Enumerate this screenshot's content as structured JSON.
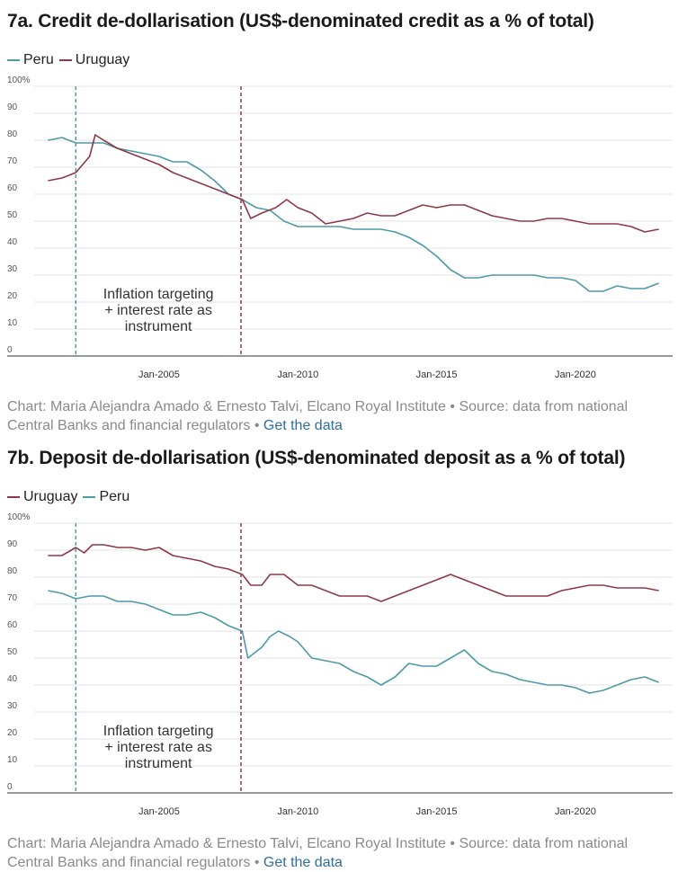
{
  "charts": [
    {
      "id": "a",
      "title": "7a. Credit de-dollarisation (US$-denominated credit as a % of total)",
      "legend": [
        {
          "name": "Peru",
          "color": "#4e9aa8"
        },
        {
          "name": "Uruguay",
          "color": "#8e3a46"
        }
      ],
      "source_text": "Chart: Maria Alejandra Amado & Ernesto Talvi, Elcano Royal Institute • Source: data from national Central Banks and financial regulators • ",
      "link_label": "Get the data",
      "annotation": [
        "Inflation targeting",
        "+ interest rate as",
        "instrument"
      ]
    },
    {
      "id": "b",
      "title": "7b. Deposit de-dollarisation (US$-denominated deposit as a % of total)",
      "legend": [
        {
          "name": "Uruguay",
          "color": "#8e3a46"
        },
        {
          "name": "Peru",
          "color": "#4e9aa8"
        }
      ],
      "source_text": "Chart: Maria Alejandra Amado & Ernesto Talvi, Elcano Royal Institute • Source: data from national Central Banks and financial regulators • ",
      "link_label": "Get the data",
      "annotation": [
        "Inflation targeting",
        "+ interest rate as",
        "instrument"
      ]
    }
  ],
  "chart_data": [
    {
      "type": "line",
      "title": "7a. Credit de-dollarisation (US$-denominated credit as a % of total)",
      "xlabel": "",
      "ylabel": "",
      "xlim": [
        2000.5,
        2023.5
      ],
      "ylim": [
        0,
        100
      ],
      "y_ticks": [
        0,
        10,
        20,
        30,
        40,
        50,
        60,
        70,
        80,
        90
      ],
      "y_top_label": "100%",
      "x_ticks": [
        {
          "label": "Jan-2005",
          "x": 2005
        },
        {
          "label": "Jan-2010",
          "x": 2010
        },
        {
          "label": "Jan-2015",
          "x": 2015
        },
        {
          "label": "Jan-2020",
          "x": 2020
        }
      ],
      "grid": true,
      "legend_position": "top-left",
      "vlines": [
        {
          "x": 2002.0,
          "color": "#4e9aa8"
        },
        {
          "x": 2007.95,
          "color": "#8e3a46"
        }
      ],
      "series": [
        {
          "name": "Peru",
          "color": "#4e9aa8",
          "points": [
            [
              2001.0,
              80
            ],
            [
              2001.5,
              81
            ],
            [
              2002.0,
              79
            ],
            [
              2002.5,
              79
            ],
            [
              2003.0,
              79
            ],
            [
              2003.5,
              77
            ],
            [
              2004.0,
              76
            ],
            [
              2004.5,
              75
            ],
            [
              2005.0,
              74
            ],
            [
              2005.5,
              72
            ],
            [
              2006.0,
              72
            ],
            [
              2006.5,
              69
            ],
            [
              2007.0,
              65
            ],
            [
              2007.5,
              60
            ],
            [
              2008.0,
              58
            ],
            [
              2008.5,
              55
            ],
            [
              2009.0,
              54
            ],
            [
              2009.5,
              50
            ],
            [
              2010.0,
              48
            ],
            [
              2010.5,
              48
            ],
            [
              2011.0,
              48
            ],
            [
              2011.5,
              48
            ],
            [
              2012.0,
              47
            ],
            [
              2012.5,
              47
            ],
            [
              2013.0,
              47
            ],
            [
              2013.5,
              46
            ],
            [
              2014.0,
              44
            ],
            [
              2014.5,
              41
            ],
            [
              2015.0,
              37
            ],
            [
              2015.5,
              32
            ],
            [
              2016.0,
              29
            ],
            [
              2016.5,
              29
            ],
            [
              2017.0,
              30
            ],
            [
              2017.5,
              30
            ],
            [
              2018.0,
              30
            ],
            [
              2018.5,
              30
            ],
            [
              2019.0,
              29
            ],
            [
              2019.5,
              29
            ],
            [
              2020.0,
              28
            ],
            [
              2020.5,
              24
            ],
            [
              2021.0,
              24
            ],
            [
              2021.5,
              26
            ],
            [
              2022.0,
              25
            ],
            [
              2022.5,
              25
            ],
            [
              2023.0,
              27
            ]
          ]
        },
        {
          "name": "Uruguay",
          "color": "#8e3a46",
          "points": [
            [
              2001.0,
              65
            ],
            [
              2001.5,
              66
            ],
            [
              2002.0,
              68
            ],
            [
              2002.5,
              74
            ],
            [
              2002.7,
              82
            ],
            [
              2003.0,
              80
            ],
            [
              2003.5,
              77
            ],
            [
              2004.0,
              75
            ],
            [
              2004.5,
              73
            ],
            [
              2005.0,
              71
            ],
            [
              2005.5,
              68
            ],
            [
              2006.0,
              66
            ],
            [
              2006.5,
              64
            ],
            [
              2007.0,
              62
            ],
            [
              2007.5,
              60
            ],
            [
              2008.0,
              58
            ],
            [
              2008.3,
              51
            ],
            [
              2008.7,
              53
            ],
            [
              2009.2,
              55
            ],
            [
              2009.6,
              58
            ],
            [
              2010.0,
              55
            ],
            [
              2010.5,
              53
            ],
            [
              2011.0,
              49
            ],
            [
              2011.5,
              50
            ],
            [
              2012.0,
              51
            ],
            [
              2012.5,
              53
            ],
            [
              2013.0,
              52
            ],
            [
              2013.5,
              52
            ],
            [
              2014.0,
              54
            ],
            [
              2014.5,
              56
            ],
            [
              2015.0,
              55
            ],
            [
              2015.5,
              56
            ],
            [
              2016.0,
              56
            ],
            [
              2016.5,
              54
            ],
            [
              2017.0,
              52
            ],
            [
              2017.5,
              51
            ],
            [
              2018.0,
              50
            ],
            [
              2018.5,
              50
            ],
            [
              2019.0,
              51
            ],
            [
              2019.5,
              51
            ],
            [
              2020.0,
              50
            ],
            [
              2020.5,
              49
            ],
            [
              2021.0,
              49
            ],
            [
              2021.5,
              49
            ],
            [
              2022.0,
              48
            ],
            [
              2022.5,
              46
            ],
            [
              2023.0,
              47
            ]
          ]
        }
      ]
    },
    {
      "type": "line",
      "title": "7b. Deposit de-dollarisation (US$-denominated deposit as a % of total)",
      "xlabel": "",
      "ylabel": "",
      "xlim": [
        2000.5,
        2023.5
      ],
      "ylim": [
        0,
        100
      ],
      "y_ticks": [
        0,
        10,
        20,
        30,
        40,
        50,
        60,
        70,
        80,
        90
      ],
      "y_top_label": "100%",
      "x_ticks": [
        {
          "label": "Jan-2005",
          "x": 2005
        },
        {
          "label": "Jan-2010",
          "x": 2010
        },
        {
          "label": "Jan-2015",
          "x": 2015
        },
        {
          "label": "Jan-2020",
          "x": 2020
        }
      ],
      "grid": true,
      "legend_position": "top-left",
      "vlines": [
        {
          "x": 2002.0,
          "color": "#4e9aa8"
        },
        {
          "x": 2007.95,
          "color": "#8e3a46"
        }
      ],
      "series": [
        {
          "name": "Uruguay",
          "color": "#8e3a46",
          "points": [
            [
              2001.0,
              88
            ],
            [
              2001.5,
              88
            ],
            [
              2002.0,
              91
            ],
            [
              2002.3,
              89
            ],
            [
              2002.6,
              92
            ],
            [
              2003.0,
              92
            ],
            [
              2003.5,
              91
            ],
            [
              2004.0,
              91
            ],
            [
              2004.5,
              90
            ],
            [
              2005.0,
              91
            ],
            [
              2005.5,
              88
            ],
            [
              2006.0,
              87
            ],
            [
              2006.5,
              86
            ],
            [
              2007.0,
              84
            ],
            [
              2007.5,
              83
            ],
            [
              2008.0,
              81
            ],
            [
              2008.3,
              77
            ],
            [
              2008.7,
              77
            ],
            [
              2009.0,
              81
            ],
            [
              2009.5,
              81
            ],
            [
              2010.0,
              77
            ],
            [
              2010.5,
              77
            ],
            [
              2011.0,
              75
            ],
            [
              2011.5,
              73
            ],
            [
              2012.0,
              73
            ],
            [
              2012.5,
              73
            ],
            [
              2013.0,
              71
            ],
            [
              2013.5,
              73
            ],
            [
              2014.0,
              75
            ],
            [
              2014.5,
              77
            ],
            [
              2015.0,
              79
            ],
            [
              2015.5,
              81
            ],
            [
              2016.0,
              79
            ],
            [
              2016.5,
              77
            ],
            [
              2017.0,
              75
            ],
            [
              2017.5,
              73
            ],
            [
              2018.0,
              73
            ],
            [
              2018.5,
              73
            ],
            [
              2019.0,
              73
            ],
            [
              2019.5,
              75
            ],
            [
              2020.0,
              76
            ],
            [
              2020.5,
              77
            ],
            [
              2021.0,
              77
            ],
            [
              2021.5,
              76
            ],
            [
              2022.0,
              76
            ],
            [
              2022.5,
              76
            ],
            [
              2023.0,
              75
            ]
          ]
        },
        {
          "name": "Peru",
          "color": "#4e9aa8",
          "points": [
            [
              2001.0,
              75
            ],
            [
              2001.5,
              74
            ],
            [
              2002.0,
              72
            ],
            [
              2002.5,
              73
            ],
            [
              2003.0,
              73
            ],
            [
              2003.5,
              71
            ],
            [
              2004.0,
              71
            ],
            [
              2004.5,
              70
            ],
            [
              2005.0,
              68
            ],
            [
              2005.5,
              66
            ],
            [
              2006.0,
              66
            ],
            [
              2006.5,
              67
            ],
            [
              2007.0,
              65
            ],
            [
              2007.5,
              62
            ],
            [
              2008.0,
              60
            ],
            [
              2008.2,
              50
            ],
            [
              2008.7,
              54
            ],
            [
              2009.0,
              58
            ],
            [
              2009.3,
              60
            ],
            [
              2009.7,
              58
            ],
            [
              2010.0,
              56
            ],
            [
              2010.5,
              50
            ],
            [
              2011.0,
              49
            ],
            [
              2011.5,
              48
            ],
            [
              2012.0,
              45
            ],
            [
              2012.5,
              43
            ],
            [
              2013.0,
              40
            ],
            [
              2013.5,
              43
            ],
            [
              2014.0,
              48
            ],
            [
              2014.5,
              47
            ],
            [
              2015.0,
              47
            ],
            [
              2015.5,
              50
            ],
            [
              2016.0,
              53
            ],
            [
              2016.5,
              48
            ],
            [
              2017.0,
              45
            ],
            [
              2017.5,
              44
            ],
            [
              2018.0,
              42
            ],
            [
              2018.5,
              41
            ],
            [
              2019.0,
              40
            ],
            [
              2019.5,
              40
            ],
            [
              2020.0,
              39
            ],
            [
              2020.5,
              37
            ],
            [
              2021.0,
              38
            ],
            [
              2021.5,
              40
            ],
            [
              2022.0,
              42
            ],
            [
              2022.5,
              43
            ],
            [
              2023.0,
              41
            ]
          ]
        }
      ]
    }
  ]
}
